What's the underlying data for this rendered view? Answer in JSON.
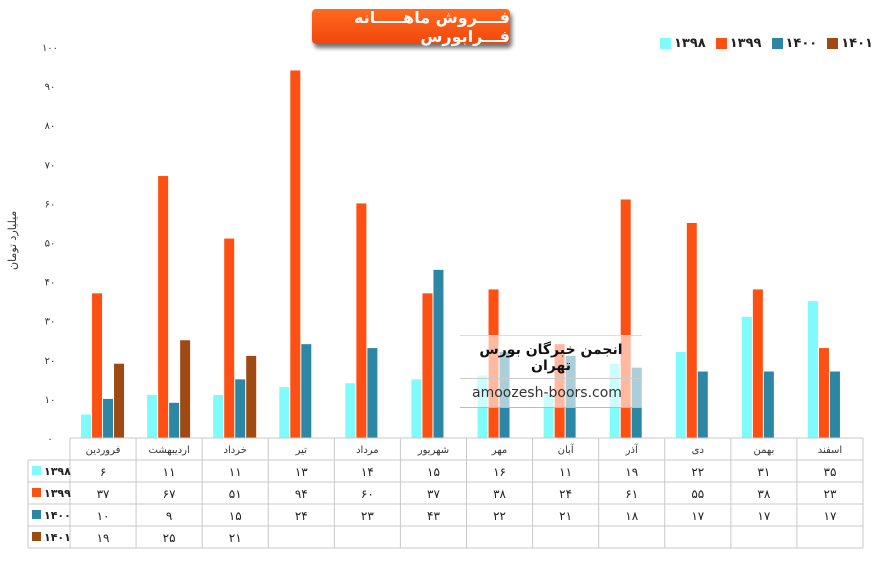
{
  "page": {
    "title": "فــــروش ماهـــــانه فـــرابورس",
    "ylabel": "میلیارد تومان",
    "watermark_name": "انجمن خبرگان بورس تهران",
    "watermark_url": "amoozesh-boors.com"
  },
  "chart_data": {
    "type": "bar",
    "title": "فــــروش ماهـــــانه فـــرابورس",
    "ylabel": "میلیارد تومان",
    "ylim": [
      0,
      100
    ],
    "yticks": [
      "۰",
      "۱۰",
      "۲۰",
      "۳۰",
      "۴۰",
      "۵۰",
      "۶۰",
      "۷۰",
      "۸۰",
      "۹۰",
      "۱۰۰"
    ],
    "grid": false,
    "legend": "top-right",
    "categories": [
      "فروردین",
      "اردیبهشت",
      "خرداد",
      "تیر",
      "مرداد",
      "شهریور",
      "مهر",
      "آبان",
      "آذر",
      "دی",
      "بهمن",
      "اسفند"
    ],
    "series": [
      {
        "name": "۱۳۹۸",
        "color": "#7ffbfb",
        "values": [
          6,
          11,
          11,
          13,
          14,
          15,
          16,
          11,
          19,
          22,
          31,
          35
        ],
        "labels": [
          "۶",
          "۱۱",
          "۱۱",
          "۱۳",
          "۱۴",
          "۱۵",
          "۱۶",
          "۱۱",
          "۱۹",
          "۲۲",
          "۳۱",
          "۳۵"
        ]
      },
      {
        "name": "۱۳۹۹",
        "color": "#ff5014",
        "values": [
          37,
          67,
          51,
          94,
          60,
          37,
          38,
          24,
          61,
          55,
          38,
          23
        ],
        "labels": [
          "۳۷",
          "۶۷",
          "۵۱",
          "۹۴",
          "۶۰",
          "۳۷",
          "۳۸",
          "۲۴",
          "۶۱",
          "۵۵",
          "۳۸",
          "۲۳"
        ]
      },
      {
        "name": "۱۴۰۰",
        "color": "#2b87a4",
        "values": [
          10,
          9,
          15,
          24,
          23,
          43,
          22,
          21,
          18,
          17,
          17,
          17
        ],
        "labels": [
          "۱۰",
          "۹",
          "۱۵",
          "۲۴",
          "۲۳",
          "۴۳",
          "۲۲",
          "۲۱",
          "۱۸",
          "۱۷",
          "۱۷",
          "۱۷"
        ]
      },
      {
        "name": "۱۴۰۱",
        "color": "#9e4a12",
        "values": [
          19,
          25,
          21,
          null,
          null,
          null,
          null,
          null,
          null,
          null,
          null,
          null
        ],
        "labels": [
          "۱۹",
          "۲۵",
          "۲۱",
          "",
          "",
          "",
          "",
          "",
          "",
          "",
          "",
          ""
        ]
      }
    ]
  }
}
